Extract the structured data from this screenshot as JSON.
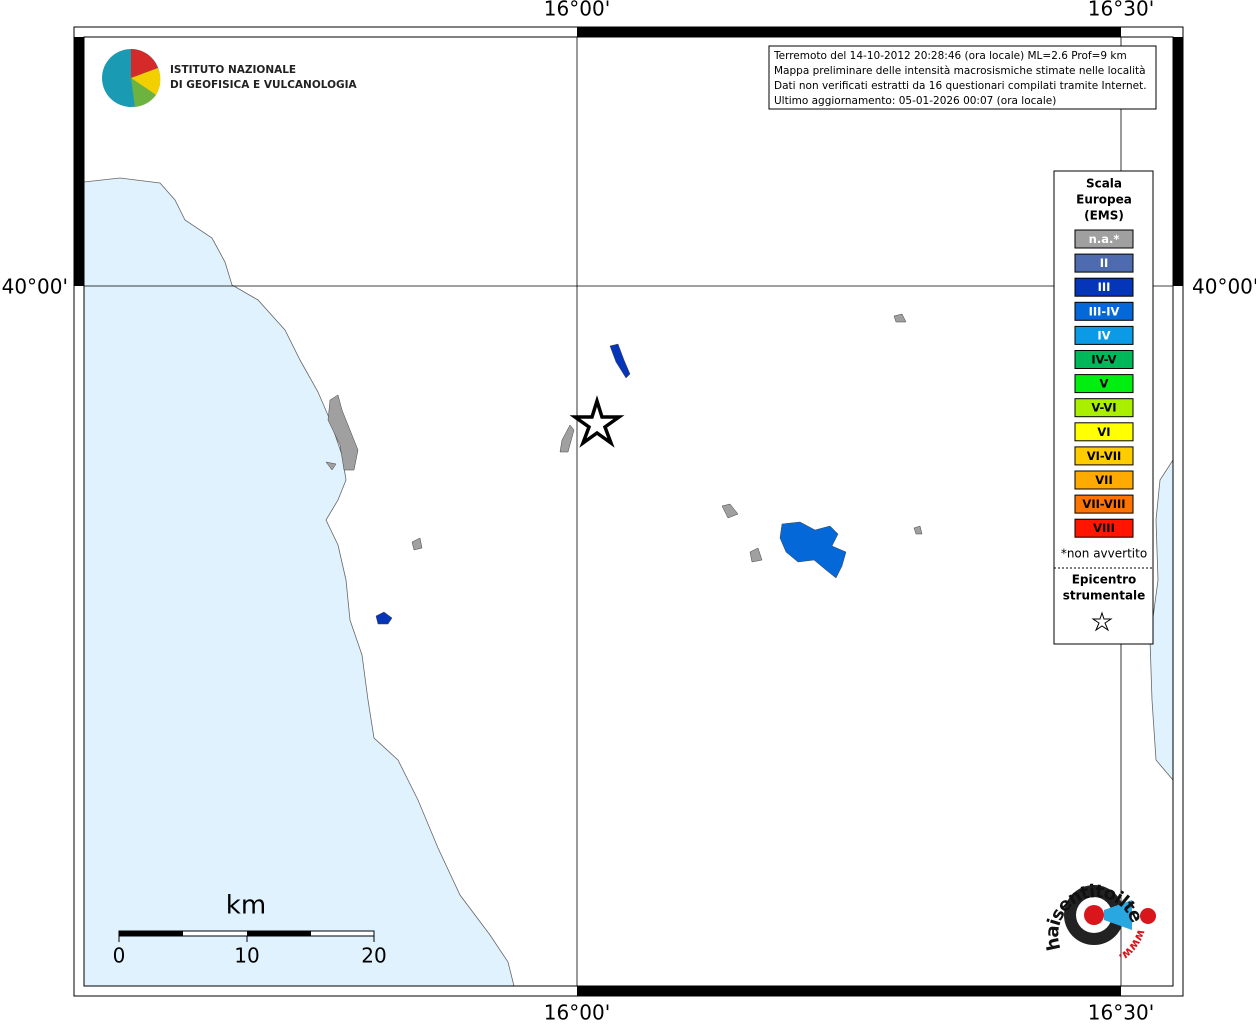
{
  "axes": {
    "top": [
      "16°00'",
      "16°30'"
    ],
    "bottom": [
      "16°00'",
      "16°30'"
    ],
    "left": [
      "40°00'"
    ],
    "right": [
      "40°00'"
    ]
  },
  "logo": {
    "lines": [
      "ISTITUTO NAZIONALE",
      "DI GEOFISICA E VULCANOLOGIA"
    ]
  },
  "info": {
    "lines": [
      "Terremoto del 14-10-2012 20:28:46 (ora locale) ML=2.6 Prof=9 km",
      "Mappa preliminare delle intensità macrosismiche stimate nelle località",
      "Dati non verificati estratti da 16 questionari compilati tramite Internet.",
      "Ultimo aggiornamento: 05-01-2026 00:07 (ora locale)"
    ]
  },
  "legend": {
    "title": [
      "Scala",
      "Europea",
      "(EMS)"
    ],
    "items": [
      {
        "label": "n.a.*",
        "color": "#a0a0a0",
        "text_color": "#ffffff"
      },
      {
        "label": "II",
        "color": "#4f6bb0",
        "text_color": "#ffffff"
      },
      {
        "label": "III",
        "color": "#0535b8",
        "text_color": "#ffffff"
      },
      {
        "label": "III-IV",
        "color": "#0468d8",
        "text_color": "#ffffff"
      },
      {
        "label": "IV",
        "color": "#0a9ae6",
        "text_color": "#ffffff"
      },
      {
        "label": "IV-V",
        "color": "#00b85a",
        "text_color": "#000000"
      },
      {
        "label": "V",
        "color": "#00ee10",
        "text_color": "#000000"
      },
      {
        "label": "V-VI",
        "color": "#aaee00",
        "text_color": "#000000"
      },
      {
        "label": "VI",
        "color": "#ffff00",
        "text_color": "#000000"
      },
      {
        "label": "VI-VII",
        "color": "#ffcc00",
        "text_color": "#000000"
      },
      {
        "label": "VII",
        "color": "#ffaa00",
        "text_color": "#000000"
      },
      {
        "label": "VII-VIII",
        "color": "#ff7300",
        "text_color": "#000000"
      },
      {
        "label": "VIII",
        "color": "#ff1500",
        "text_color": "#000000"
      }
    ],
    "note": "*non avvertito",
    "epicenter": [
      "Epicentro",
      "strumentale"
    ]
  },
  "scale_bar": {
    "unit": "km",
    "labels": [
      "0",
      "10",
      "20"
    ]
  },
  "watermark": {
    "site": "haisentitoilterremoto.it",
    "prefix": "www."
  }
}
